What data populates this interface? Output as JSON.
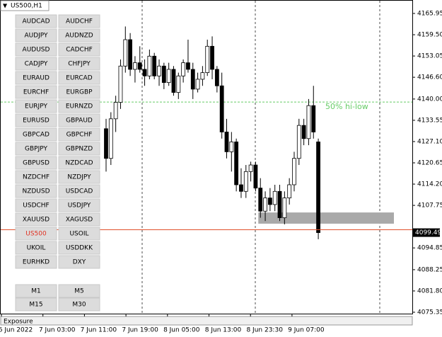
{
  "symbol_label": "US500,H1",
  "buttons": [
    [
      "AUDCAD",
      "AUDCHF"
    ],
    [
      "AUDJPY",
      "AUDNZD"
    ],
    [
      "AUDUSD",
      "CADCHF"
    ],
    [
      "CADJPY",
      "CHFJPY"
    ],
    [
      "EURAUD",
      "EURCAD"
    ],
    [
      "EURCHF",
      "EURGBP"
    ],
    [
      "EURJPY",
      "EURNZD"
    ],
    [
      "EURUSD",
      "GBPAUD"
    ],
    [
      "GBPCAD",
      "GBPCHF"
    ],
    [
      "GBPJPY",
      "GBPNZD"
    ],
    [
      "GBPUSD",
      "NZDCAD"
    ],
    [
      "NZDCHF",
      "NZDJPY"
    ],
    [
      "NZDUSD",
      "USDCAD"
    ],
    [
      "USDCHF",
      "USDJPY"
    ],
    [
      "XAUUSD",
      "XAGUSD"
    ],
    [
      "US500",
      "USOIL"
    ],
    [
      "UKOIL",
      "USDDKK"
    ],
    [
      "EURHKD",
      "DXY"
    ]
  ],
  "active_button": "US500",
  "timeframes": [
    [
      "M1",
      "M5"
    ],
    [
      "M15",
      "M30"
    ]
  ],
  "footer_tab": "Exposure",
  "chart_data": {
    "type": "candlestick",
    "x": [
      "6 Jun 2022",
      "7 Jun 03:00",
      "7 Jun 11:00",
      "7 Jun 19:00",
      "8 Jun 05:00",
      "8 Jun 13:00",
      "8 Jun 23:30",
      "9 Jun 07:00"
    ],
    "ylim": [
      4075.35,
      4165.95
    ],
    "yticks": [
      4165.95,
      4159.5,
      4153.05,
      4146.6,
      4140,
      4133.55,
      4127.1,
      4120.65,
      4114.2,
      4107.75,
      4094.85,
      4088.25,
      4081.8,
      4075.35
    ],
    "ytick_labels": [
      "4165.95",
      "4159.50",
      "4153.05",
      "4146.60",
      "4140.00",
      "4133.55",
      "4127.10",
      "4120.65",
      "4114.20",
      "4107.75",
      "4094.85",
      "4088.25",
      "4081.80",
      "4075.35"
    ],
    "current_price": 4099.49,
    "current_price_label": "4099.49",
    "candles": [
      [
        4131,
        4134,
        4118,
        4122
      ],
      [
        4122,
        4136,
        4120,
        4134
      ],
      [
        4134,
        4141,
        4130,
        4139
      ],
      [
        4139,
        4152,
        4137,
        4150
      ],
      [
        4150,
        4162,
        4148,
        4158
      ],
      [
        4158,
        4160,
        4147,
        4149
      ],
      [
        4149,
        4153,
        4145,
        4151
      ],
      [
        4151,
        4156,
        4148,
        4149
      ],
      [
        4149,
        4152,
        4144,
        4147
      ],
      [
        4147,
        4155,
        4146,
        4153
      ],
      [
        4153,
        4154,
        4146,
        4147
      ],
      [
        4147,
        4152,
        4144,
        4150
      ],
      [
        4150,
        4151,
        4143,
        4145
      ],
      [
        4145,
        4151,
        4144,
        4149
      ],
      [
        4149,
        4150,
        4141,
        4142
      ],
      [
        4142,
        4148,
        4140,
        4147
      ],
      [
        4147,
        4152,
        4145,
        4151
      ],
      [
        4151,
        4158,
        4148,
        4149
      ],
      [
        4149,
        4151,
        4140,
        4143
      ],
      [
        4143,
        4148,
        4142,
        4146
      ],
      [
        4146,
        4150,
        4144,
        4148
      ],
      [
        4148,
        4158,
        4147,
        4156
      ],
      [
        4156,
        4159,
        4146,
        4149
      ],
      [
        4149,
        4150,
        4142,
        4144
      ],
      [
        4144,
        4148,
        4128,
        4130
      ],
      [
        4130,
        4134,
        4122,
        4124
      ],
      [
        4124,
        4130,
        4118,
        4127
      ],
      [
        4127,
        4128,
        4112,
        4114
      ],
      [
        4114,
        4119,
        4110,
        4112
      ],
      [
        4112,
        4120,
        4110,
        4118
      ],
      [
        4118,
        4121,
        4115,
        4120
      ],
      [
        4120,
        4121,
        4112,
        4113
      ],
      [
        4113,
        4116,
        4104,
        4106
      ],
      [
        4106,
        4112,
        4103,
        4110
      ],
      [
        4110,
        4113,
        4106,
        4108
      ],
      [
        4108,
        4114,
        4106,
        4112
      ],
      [
        4112,
        4114,
        4103,
        4104
      ],
      [
        4104,
        4112,
        4102,
        4110
      ],
      [
        4110,
        4116,
        4108,
        4114
      ],
      [
        4114,
        4124,
        4112,
        4122
      ],
      [
        4122,
        4134,
        4120,
        4132
      ],
      [
        4132,
        4134,
        4126,
        4128
      ],
      [
        4128,
        4140,
        4126,
        4138
      ],
      [
        4138,
        4144,
        4128,
        4130
      ],
      [
        4127,
        4128,
        4097.5,
        4099.49
      ]
    ],
    "hi_low_level": 4139.1,
    "hi_low_label": "50% hi-low",
    "zone": [
      4102.2,
      4105.6
    ]
  }
}
